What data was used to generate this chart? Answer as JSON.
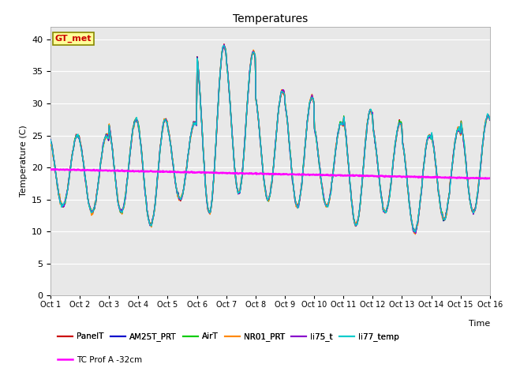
{
  "title": "Temperatures",
  "xlabel": "Time",
  "ylabel": "Temperature (C)",
  "ylim": [
    0,
    42
  ],
  "yticks": [
    0,
    5,
    10,
    15,
    20,
    25,
    30,
    35,
    40
  ],
  "bg_color": "#e8e8e8",
  "fig_color": "#ffffff",
  "series": {
    "PanelT": {
      "color": "#cc0000",
      "lw": 1.0
    },
    "AM25T_PRT": {
      "color": "#0000cc",
      "lw": 1.0
    },
    "AirT": {
      "color": "#00cc00",
      "lw": 1.0
    },
    "NR01_PRT": {
      "color": "#ff8800",
      "lw": 1.0
    },
    "li75_t": {
      "color": "#8800cc",
      "lw": 1.0
    },
    "li77_temp": {
      "color": "#00cccc",
      "lw": 1.0
    },
    "TC Prof A -32cm": {
      "color": "#ff00ff",
      "lw": 1.8
    }
  },
  "annotation": {
    "text": "GT_met",
    "fontsize": 8,
    "color": "#cc0000",
    "bg": "#ffff99",
    "border": "#888800"
  },
  "xtick_labels": [
    "Oct 1",
    "Oct 2",
    "Oct 3",
    "Oct 4",
    "Oct 5",
    "Oct 6",
    "Oct 7",
    "Oct 8",
    "Oct 9",
    "Oct 10",
    "Oct 11",
    "Oct 12",
    "Oct 13",
    "Oct 14",
    "Oct 15",
    "Oct 16"
  ],
  "n_days": 15,
  "pts_per_day": 48,
  "day_peaks": [
    25,
    25,
    27.5,
    27.5,
    27,
    39,
    38,
    32,
    31,
    27,
    29,
    27,
    25,
    26,
    28
  ],
  "day_troughs": [
    14,
    13,
    13,
    11,
    15,
    13,
    16,
    15,
    14,
    14,
    11,
    13,
    10,
    12,
    13
  ]
}
